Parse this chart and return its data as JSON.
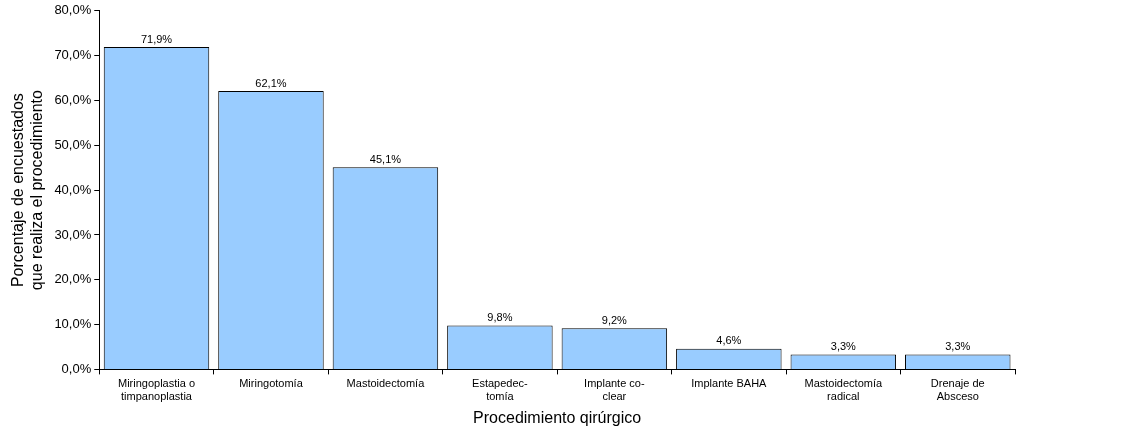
{
  "chart_data": {
    "type": "bar",
    "xlabel": "Procedimiento qirúrgico",
    "ylabel": "Porcentaje de encuestados\nque realiza el procedimiento",
    "categories": [
      "Miringoplastia o\ntimpanoplastia",
      "Miringotomía",
      "Mastoidectomía",
      "Estapedec-\ntomía",
      "Implante co-\nclear",
      "Implante BAHA",
      "Mastoidectomía\nradical",
      "Drenaje de\nAbsceso"
    ],
    "values": [
      71.9,
      62.1,
      45.1,
      9.8,
      9.2,
      4.6,
      3.3,
      3.3
    ],
    "value_labels": [
      "71,9%",
      "62,1%",
      "45,1%",
      "9,8%",
      "9,2%",
      "4,6%",
      "3,3%",
      "3,3%"
    ],
    "color": "#99ccff",
    "ylim": [
      0,
      80
    ],
    "yticks": [
      {
        "value": 0,
        "label": "0,0%"
      },
      {
        "value": 10,
        "label": "10,0%"
      },
      {
        "value": 20,
        "label": "20,0%"
      },
      {
        "value": 30,
        "label": "30,0%"
      },
      {
        "value": 40,
        "label": "40,0%"
      },
      {
        "value": 50,
        "label": "50,0%"
      },
      {
        "value": 60,
        "label": "60,0%"
      },
      {
        "value": 70,
        "label": "70,0%"
      },
      {
        "value": 80,
        "label": "80,0%"
      }
    ],
    "grid": false,
    "legend": false
  }
}
